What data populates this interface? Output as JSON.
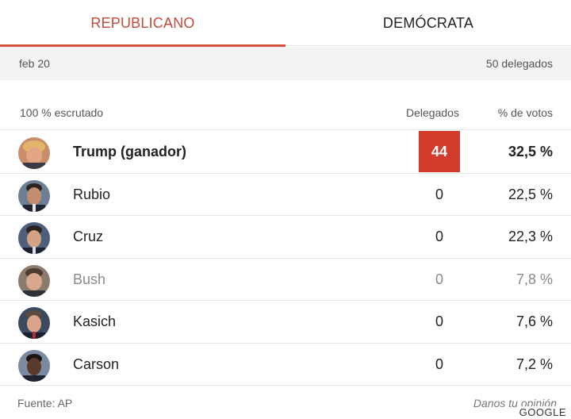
{
  "tabs": [
    {
      "label": "REPUBLICANO",
      "active": true
    },
    {
      "label": "DEMÓCRATA",
      "active": false
    }
  ],
  "info": {
    "date": "feb 20",
    "delegates_total": "50 delegados"
  },
  "table": {
    "status": "100 % escrutado",
    "col_delegates": "Delegados",
    "col_votes": "% de votos",
    "rows": [
      {
        "name": "Trump (ganador)",
        "delegates": "44",
        "pct": "32,5 %",
        "avatar": "trump-avatar"
      },
      {
        "name": "Rubio",
        "delegates": "0",
        "pct": "22,5 %",
        "avatar": "rubio-avatar"
      },
      {
        "name": "Cruz",
        "delegates": "0",
        "pct": "22,3 %",
        "avatar": "cruz-avatar"
      },
      {
        "name": "Bush",
        "delegates": "0",
        "pct": "7,8 %",
        "avatar": "bush-avatar"
      },
      {
        "name": "Kasich",
        "delegates": "0",
        "pct": "7,6 %",
        "avatar": "kasich-avatar"
      },
      {
        "name": "Carson",
        "delegates": "0",
        "pct": "7,2 %",
        "avatar": "carson-avatar"
      }
    ]
  },
  "footer": {
    "source": "Fuente: AP",
    "feedback": "Danos tu opinión",
    "brand": "GOOGLE"
  },
  "colors": {
    "accent": "#d5533f",
    "winner_badge": "#d33b2c"
  }
}
